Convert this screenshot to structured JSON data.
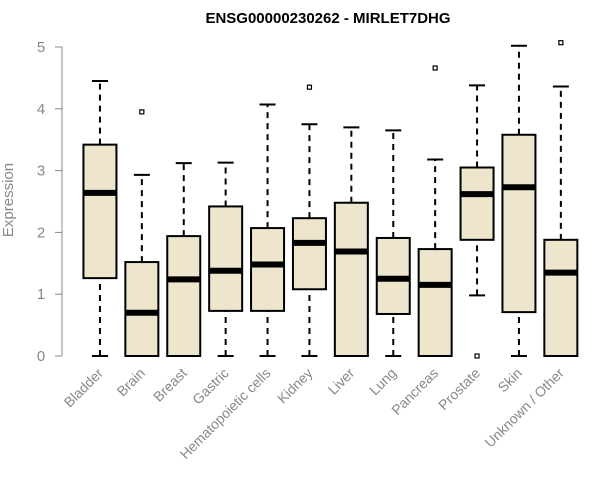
{
  "chart_data": {
    "type": "boxplot",
    "title": "ENSG00000230262 - MIRLET7DHG",
    "xlabel": "",
    "ylabel": "Expression",
    "ylim": [
      0,
      5
    ],
    "yticks": [
      0,
      1,
      2,
      3,
      4,
      5
    ],
    "box_fill": "#ede6cc",
    "axis_color": "#888888",
    "grid": false,
    "categories": [
      "Bladder",
      "Brain",
      "Breast",
      "Gastric",
      "Hematopoietic cells",
      "Kidney",
      "Liver",
      "Lung",
      "Pancreas",
      "Prostate",
      "Skin",
      "Unknown / Other"
    ],
    "boxes": [
      {
        "min": 0,
        "q1": 1.26,
        "median": 2.64,
        "q3": 3.42,
        "max": 4.45,
        "outliers": []
      },
      {
        "min": 0,
        "q1": 0,
        "median": 0.7,
        "q3": 1.52,
        "max": 2.93,
        "outliers": [
          3.95
        ]
      },
      {
        "min": 0,
        "q1": 0,
        "median": 1.24,
        "q3": 1.94,
        "max": 3.12,
        "outliers": []
      },
      {
        "min": 0,
        "q1": 0.73,
        "median": 1.38,
        "q3": 2.42,
        "max": 3.13,
        "outliers": []
      },
      {
        "min": 0,
        "q1": 0.73,
        "median": 1.48,
        "q3": 2.07,
        "max": 4.07,
        "outliers": []
      },
      {
        "min": 0,
        "q1": 1.08,
        "median": 1.83,
        "q3": 2.23,
        "max": 3.75,
        "outliers": [
          4.35
        ]
      },
      {
        "min": 0,
        "q1": 0,
        "median": 1.69,
        "q3": 2.48,
        "max": 3.7,
        "outliers": []
      },
      {
        "min": 0,
        "q1": 0.68,
        "median": 1.25,
        "q3": 1.91,
        "max": 3.65,
        "outliers": []
      },
      {
        "min": 0,
        "q1": 0,
        "median": 1.15,
        "q3": 1.73,
        "max": 3.18,
        "outliers": [
          4.66
        ]
      },
      {
        "min": 0.98,
        "q1": 1.88,
        "median": 2.62,
        "q3": 3.05,
        "max": 4.38,
        "outliers": [
          0
        ]
      },
      {
        "min": 0,
        "q1": 0.71,
        "median": 2.73,
        "q3": 3.58,
        "max": 5.02,
        "outliers": []
      },
      {
        "min": 0,
        "q1": 0,
        "median": 1.35,
        "q3": 1.88,
        "max": 4.36,
        "outliers": [
          5.07
        ]
      }
    ]
  }
}
